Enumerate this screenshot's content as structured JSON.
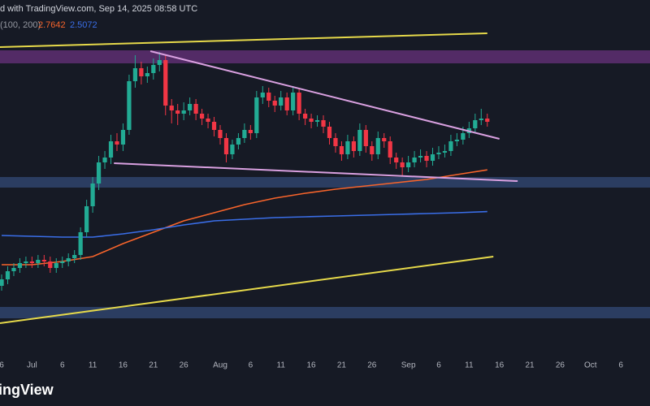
{
  "chart_data": {
    "type": "candlestick",
    "header": "d with TradingView.com, Sep 14, 2025 08:58 UTC",
    "indicator_label": "(100, 200)",
    "logo": "ingView",
    "background": "#161a25",
    "up_color": "#22ab94",
    "down_color": "#f23645",
    "xlim": [
      -0.27,
      106.8
    ],
    "ylim": [
      1.61,
      3.81
    ],
    "xticks": [
      {
        "value": 0,
        "label": "6"
      },
      {
        "value": 5,
        "label": "Jul"
      },
      {
        "value": 10,
        "label": "6"
      },
      {
        "value": 15,
        "label": "11"
      },
      {
        "value": 20,
        "label": "16"
      },
      {
        "value": 25,
        "label": "21"
      },
      {
        "value": 30,
        "label": "26"
      },
      {
        "value": 36,
        "label": "Aug"
      },
      {
        "value": 41,
        "label": "6"
      },
      {
        "value": 46,
        "label": "11"
      },
      {
        "value": 51,
        "label": "16"
      },
      {
        "value": 56,
        "label": "21"
      },
      {
        "value": 61,
        "label": "26"
      },
      {
        "value": 67,
        "label": "Sep"
      },
      {
        "value": 72,
        "label": "6"
      },
      {
        "value": 77,
        "label": "11"
      },
      {
        "value": 82,
        "label": "16"
      },
      {
        "value": 87,
        "label": "21"
      },
      {
        "value": 92,
        "label": "26"
      },
      {
        "value": 97,
        "label": "Oct"
      },
      {
        "value": 102,
        "label": "6"
      }
    ],
    "ohlc": [
      [
        2.05,
        2.12,
        2.02,
        2.09
      ],
      [
        2.09,
        2.17,
        2.06,
        2.14
      ],
      [
        2.14,
        2.19,
        2.11,
        2.16
      ],
      [
        2.16,
        2.22,
        2.13,
        2.19
      ],
      [
        2.19,
        2.23,
        2.16,
        2.2
      ],
      [
        2.2,
        2.23,
        2.16,
        2.19
      ],
      [
        2.19,
        2.24,
        2.16,
        2.21
      ],
      [
        2.21,
        2.24,
        2.17,
        2.2
      ],
      [
        2.2,
        2.23,
        2.13,
        2.16
      ],
      [
        2.16,
        2.22,
        2.13,
        2.19
      ],
      [
        2.19,
        2.23,
        2.16,
        2.2
      ],
      [
        2.2,
        2.25,
        2.17,
        2.22
      ],
      [
        2.22,
        2.27,
        2.19,
        2.24
      ],
      [
        2.24,
        2.41,
        2.21,
        2.38
      ],
      [
        2.38,
        2.58,
        2.35,
        2.54
      ],
      [
        2.54,
        2.72,
        2.5,
        2.68
      ],
      [
        2.68,
        2.85,
        2.64,
        2.81
      ],
      [
        2.81,
        2.88,
        2.77,
        2.84
      ],
      [
        2.84,
        2.98,
        2.8,
        2.94
      ],
      [
        2.94,
        2.99,
        2.88,
        2.92
      ],
      [
        2.92,
        3.05,
        2.88,
        3.01
      ],
      [
        3.01,
        3.35,
        2.98,
        3.31
      ],
      [
        3.31,
        3.47,
        3.27,
        3.39
      ],
      [
        3.39,
        3.43,
        3.29,
        3.34
      ],
      [
        3.34,
        3.4,
        3.3,
        3.36
      ],
      [
        3.36,
        3.45,
        3.32,
        3.41
      ],
      [
        3.41,
        3.49,
        3.37,
        3.44
      ],
      [
        3.44,
        3.47,
        3.1,
        3.16
      ],
      [
        3.16,
        3.2,
        3.05,
        3.13
      ],
      [
        3.13,
        3.17,
        3.04,
        3.11
      ],
      [
        3.11,
        3.18,
        3.07,
        3.13
      ],
      [
        3.13,
        3.21,
        3.1,
        3.17
      ],
      [
        3.17,
        3.2,
        3.07,
        3.11
      ],
      [
        3.11,
        3.14,
        3.04,
        3.08
      ],
      [
        3.08,
        3.11,
        3.02,
        3.06
      ],
      [
        3.06,
        3.09,
        2.97,
        3.01
      ],
      [
        3.01,
        3.04,
        2.92,
        2.96
      ],
      [
        2.96,
        2.99,
        2.81,
        2.86
      ],
      [
        2.86,
        2.95,
        2.83,
        2.92
      ],
      [
        2.92,
        2.99,
        2.89,
        2.96
      ],
      [
        2.96,
        3.05,
        2.93,
        3.01
      ],
      [
        3.01,
        3.04,
        2.95,
        2.99
      ],
      [
        2.99,
        3.25,
        2.96,
        3.21
      ],
      [
        3.21,
        3.28,
        3.17,
        3.24
      ],
      [
        3.24,
        3.27,
        3.15,
        3.19
      ],
      [
        3.19,
        3.22,
        3.12,
        3.16
      ],
      [
        3.16,
        3.25,
        3.13,
        3.21
      ],
      [
        3.21,
        3.24,
        3.1,
        3.13
      ],
      [
        3.13,
        3.28,
        3.1,
        3.24
      ],
      [
        3.24,
        3.27,
        3.07,
        3.11
      ],
      [
        3.11,
        3.14,
        3.04,
        3.08
      ],
      [
        3.08,
        3.11,
        3.02,
        3.06
      ],
      [
        3.06,
        3.1,
        3.03,
        3.07
      ],
      [
        3.07,
        3.1,
        2.99,
        3.03
      ],
      [
        3.03,
        3.06,
        2.92,
        2.96
      ],
      [
        2.96,
        2.99,
        2.87,
        2.91
      ],
      [
        2.91,
        2.94,
        2.82,
        2.86
      ],
      [
        2.86,
        2.98,
        2.83,
        2.94
      ],
      [
        2.94,
        2.97,
        2.84,
        2.88
      ],
      [
        2.88,
        3.05,
        2.85,
        3.01
      ],
      [
        3.01,
        3.04,
        2.87,
        2.91
      ],
      [
        2.91,
        2.94,
        2.82,
        2.86
      ],
      [
        2.86,
        3.0,
        2.83,
        2.96
      ],
      [
        2.96,
        2.99,
        2.9,
        2.94
      ],
      [
        2.94,
        2.97,
        2.8,
        2.84
      ],
      [
        2.84,
        2.87,
        2.77,
        2.81
      ],
      [
        2.81,
        2.84,
        2.73,
        2.78
      ],
      [
        2.78,
        2.85,
        2.75,
        2.81
      ],
      [
        2.81,
        2.88,
        2.78,
        2.84
      ],
      [
        2.84,
        2.89,
        2.81,
        2.85
      ],
      [
        2.85,
        2.88,
        2.78,
        2.82
      ],
      [
        2.82,
        2.9,
        2.79,
        2.86
      ],
      [
        2.86,
        2.91,
        2.83,
        2.87
      ],
      [
        2.87,
        2.92,
        2.84,
        2.88
      ],
      [
        2.88,
        2.98,
        2.85,
        2.94
      ],
      [
        2.94,
        2.99,
        2.91,
        2.95
      ],
      [
        2.95,
        3.03,
        2.92,
        2.99
      ],
      [
        2.99,
        3.06,
        2.96,
        3.02
      ],
      [
        3.02,
        3.11,
        2.99,
        3.07
      ],
      [
        3.07,
        3.14,
        3.04,
        3.08
      ],
      [
        3.08,
        3.11,
        3.03,
        3.06
      ]
    ],
    "series": [
      {
        "color": "#f7642b",
        "legend_value": 2.7642,
        "x": [
          0,
          5,
          10,
          15,
          20,
          25,
          30,
          35,
          40,
          45,
          50,
          55,
          60,
          65,
          70,
          75,
          80
        ],
        "values": [
          2.18,
          2.18,
          2.2,
          2.23,
          2.31,
          2.38,
          2.45,
          2.5,
          2.55,
          2.59,
          2.62,
          2.645,
          2.665,
          2.685,
          2.705,
          2.735,
          2.7642
        ]
      },
      {
        "color": "#3a6ee8",
        "legend_value": 2.5072,
        "x": [
          0,
          5,
          10,
          15,
          20,
          25,
          30,
          35,
          40,
          45,
          50,
          55,
          60,
          65,
          70,
          75,
          80
        ],
        "values": [
          2.36,
          2.355,
          2.35,
          2.35,
          2.37,
          2.395,
          2.425,
          2.45,
          2.46,
          2.47,
          2.475,
          2.48,
          2.485,
          2.49,
          2.495,
          2.5,
          2.5072
        ]
      }
    ],
    "zones": [
      {
        "from": 3.42,
        "to": 3.5,
        "color": "#5a2e6e"
      },
      {
        "from": 2.655,
        "to": 2.72,
        "color": "#2e4168"
      },
      {
        "from": 1.85,
        "to": 1.92,
        "color": "#2e4168"
      }
    ],
    "trendlines": [
      {
        "x": [
          -0.27,
          80
        ],
        "y": [
          3.52,
          3.605
        ],
        "color": "#e6d94a"
      },
      {
        "x": [
          -0.27,
          81
        ],
        "y": [
          1.82,
          2.23
        ],
        "color": "#e6d94a"
      },
      {
        "x": [
          24.5,
          82
        ],
        "y": [
          3.495,
          2.955
        ],
        "color": "#d9a0e0"
      },
      {
        "x": [
          18.5,
          85
        ],
        "y": [
          2.805,
          2.695
        ],
        "color": "#d9a0e0"
      }
    ]
  }
}
